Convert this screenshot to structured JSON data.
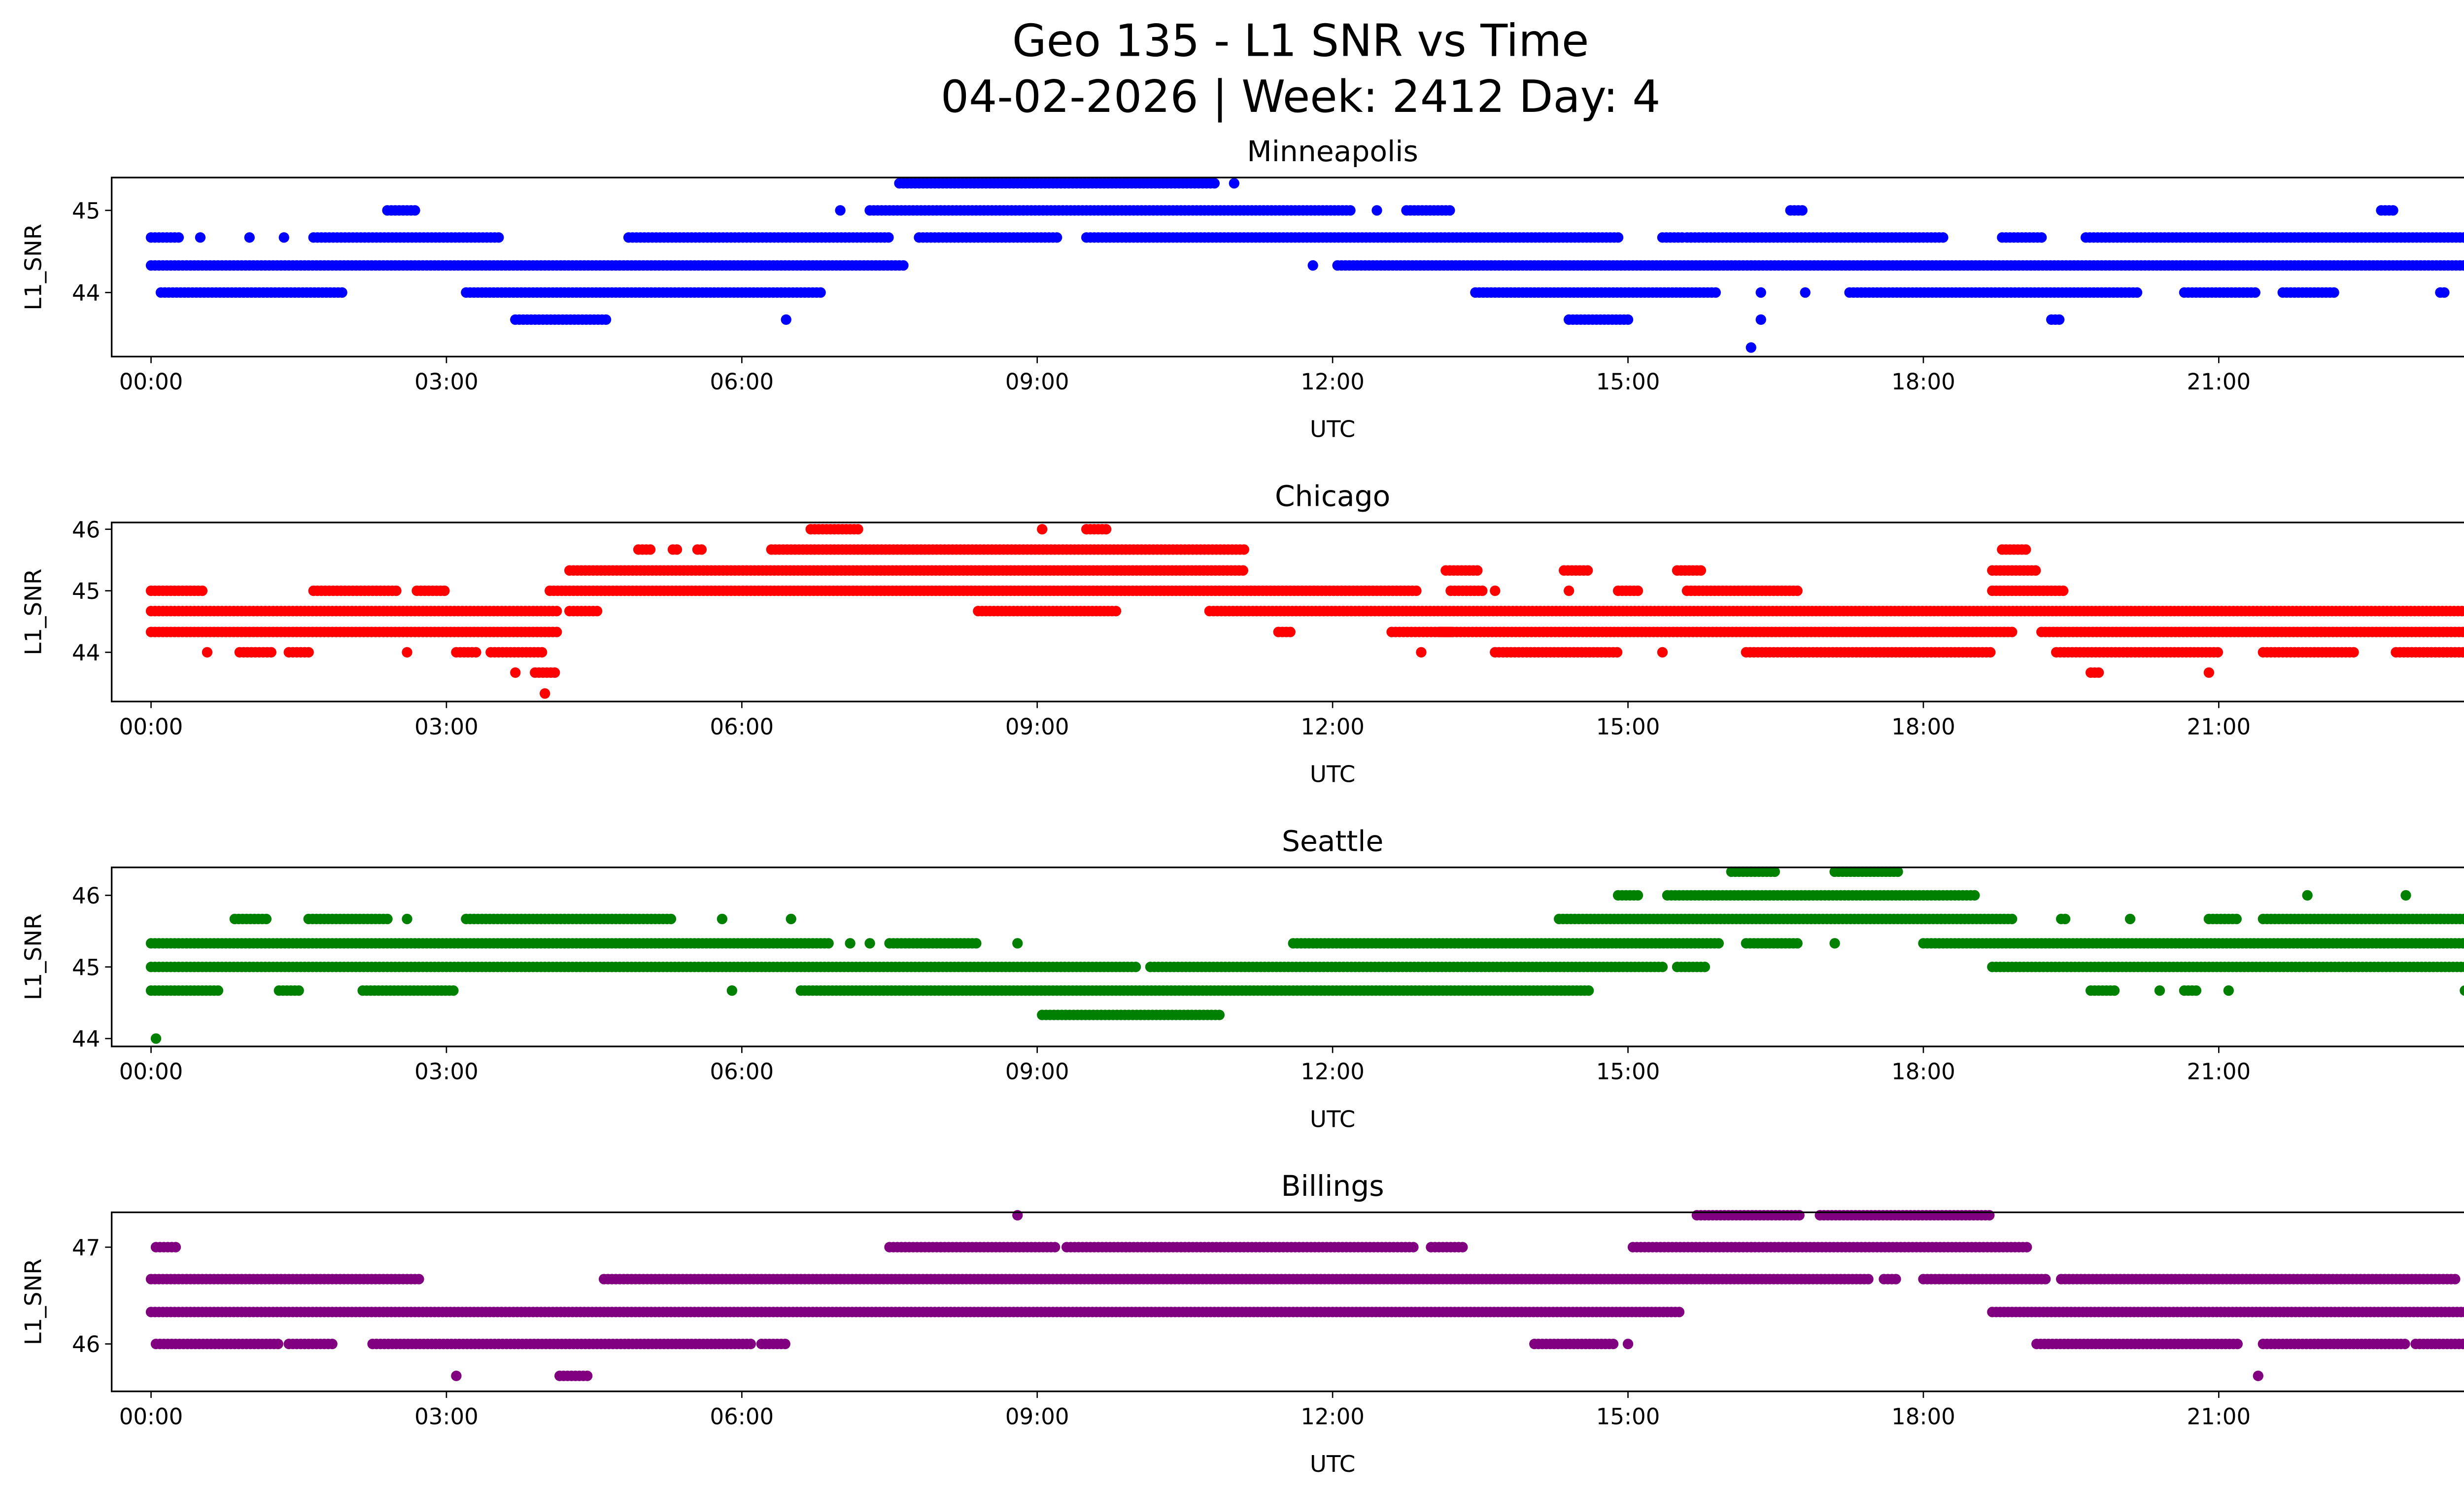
{
  "title_line1": "Geo 135 - L1 SNR vs Time",
  "title_line2": "04-02-2026 | Week: 2412 Day: 4",
  "chart_data": [
    {
      "type": "scatter",
      "title": "Minneapolis",
      "xlabel": "UTC",
      "ylabel": "L1_SNR",
      "color": "#0000ff",
      "xlim_hours": [
        -0.4,
        24.4
      ],
      "ylim": [
        43.22,
        45.4
      ],
      "yticks": [
        44,
        45
      ],
      "xticks": [
        "00:00",
        "03:00",
        "06:00",
        "09:00",
        "12:00",
        "15:00",
        "18:00",
        "21:00",
        "00:00"
      ],
      "series": [
        {
          "level": 45.33,
          "segments": [
            [
              7.6,
              10.8
            ],
            [
              11.0,
              11.0
            ]
          ]
        },
        {
          "level": 45.0,
          "segments": [
            [
              2.4,
              2.7
            ],
            [
              7.0,
              7.0
            ],
            [
              7.3,
              12.2
            ],
            [
              12.45,
              12.45
            ],
            [
              12.75,
              13.2
            ],
            [
              16.65,
              16.8
            ],
            [
              22.65,
              22.8
            ]
          ]
        },
        {
          "level": 44.67,
          "segments": [
            [
              0,
              0.3
            ],
            [
              0.5,
              0.5
            ],
            [
              1.0,
              1.0
            ],
            [
              1.35,
              1.35
            ],
            [
              1.65,
              3.55
            ],
            [
              4.85,
              7.5
            ],
            [
              7.8,
              9.2
            ],
            [
              9.5,
              14.9
            ],
            [
              15.35,
              15.55
            ],
            [
              15.6,
              18.2
            ],
            [
              18.8,
              19.2
            ],
            [
              19.65,
              24
            ]
          ]
        },
        {
          "level": 44.33,
          "segments": [
            [
              0,
              7.65
            ],
            [
              11.8,
              11.8
            ],
            [
              12.05,
              24
            ]
          ]
        },
        {
          "level": 44.0,
          "segments": [
            [
              0.1,
              1.95
            ],
            [
              3.2,
              6.8
            ],
            [
              13.45,
              15.9
            ],
            [
              16.35,
              16.35
            ],
            [
              16.8,
              16.8
            ],
            [
              17.25,
              20.2
            ],
            [
              20.65,
              21.4
            ],
            [
              21.65,
              22.2
            ],
            [
              23.25,
              23.3
            ],
            [
              23.8,
              23.85
            ]
          ]
        },
        {
          "level": 43.67,
          "segments": [
            [
              3.7,
              4.65
            ],
            [
              6.45,
              6.45
            ],
            [
              14.4,
              15.0
            ],
            [
              16.35,
              16.35
            ],
            [
              19.3,
              19.4
            ]
          ]
        },
        {
          "level": 43.33,
          "segments": [
            [
              16.25,
              16.25
            ]
          ]
        }
      ]
    },
    {
      "type": "scatter",
      "title": "Chicago",
      "xlabel": "UTC",
      "ylabel": "L1_SNR",
      "color": "#ff0000",
      "xlim_hours": [
        -0.4,
        24.4
      ],
      "ylim": [
        43.2,
        46.11
      ],
      "yticks": [
        44,
        45,
        46
      ],
      "xticks": [
        "00:00",
        "03:00",
        "06:00",
        "09:00",
        "12:00",
        "15:00",
        "18:00",
        "21:00",
        "00:00"
      ],
      "series": [
        {
          "level": 46.0,
          "segments": [
            [
              6.7,
              7.2
            ],
            [
              9.05,
              9.05
            ],
            [
              9.5,
              9.7
            ]
          ]
        },
        {
          "level": 45.67,
          "segments": [
            [
              4.95,
              5.1
            ],
            [
              5.3,
              5.35
            ],
            [
              5.55,
              5.6
            ],
            [
              6.3,
              11.1
            ],
            [
              18.8,
              19.05
            ]
          ]
        },
        {
          "level": 45.33,
          "segments": [
            [
              4.25,
              11.1
            ],
            [
              13.15,
              13.5
            ],
            [
              14.35,
              14.6
            ],
            [
              15.5,
              15.75
            ],
            [
              18.7,
              19.15
            ]
          ]
        },
        {
          "level": 45.0,
          "segments": [
            [
              0,
              0.55
            ],
            [
              1.65,
              2.5
            ],
            [
              2.7,
              3.0
            ],
            [
              4.05,
              12.85
            ],
            [
              13.2,
              13.55
            ],
            [
              13.65,
              13.65
            ],
            [
              14.4,
              14.4
            ],
            [
              14.9,
              15.1
            ],
            [
              15.6,
              16.75
            ],
            [
              18.7,
              19.45
            ],
            [
              23.95,
              24
            ]
          ]
        },
        {
          "level": 44.67,
          "segments": [
            [
              0,
              4.15
            ],
            [
              4.25,
              4.55
            ],
            [
              8.4,
              9.8
            ],
            [
              10.75,
              24
            ]
          ]
        },
        {
          "level": 44.33,
          "segments": [
            [
              0,
              4.15
            ],
            [
              11.45,
              11.6
            ],
            [
              12.6,
              13.2
            ],
            [
              13.1,
              18.9
            ],
            [
              19.2,
              24
            ]
          ]
        },
        {
          "level": 44.0,
          "segments": [
            [
              0.57,
              0.57
            ],
            [
              0.9,
              1.25
            ],
            [
              1.4,
              1.6
            ],
            [
              2.6,
              2.6
            ],
            [
              3.1,
              3.3
            ],
            [
              3.45,
              4.0
            ],
            [
              12.9,
              12.9
            ],
            [
              13.65,
              14.9
            ],
            [
              15.35,
              15.35
            ],
            [
              16.2,
              18.7
            ],
            [
              19.35,
              21.0
            ],
            [
              21.45,
              22.4
            ],
            [
              22.8,
              24
            ]
          ]
        },
        {
          "level": 43.67,
          "segments": [
            [
              3.7,
              3.7
            ],
            [
              3.9,
              4.1
            ],
            [
              19.7,
              19.8
            ],
            [
              20.9,
              20.9
            ]
          ]
        },
        {
          "level": 43.33,
          "segments": [
            [
              4.0,
              4.0
            ]
          ]
        }
      ]
    },
    {
      "type": "scatter",
      "title": "Seattle",
      "xlabel": "UTC",
      "ylabel": "L1_SNR",
      "color": "#008000",
      "xlim_hours": [
        -0.4,
        24.4
      ],
      "ylim": [
        43.89,
        46.39
      ],
      "yticks": [
        44,
        45,
        46
      ],
      "xticks": [
        "00:00",
        "03:00",
        "06:00",
        "09:00",
        "12:00",
        "15:00",
        "18:00",
        "21:00",
        "00:00"
      ],
      "series": [
        {
          "level": 46.33,
          "segments": [
            [
              16.05,
              16.5
            ],
            [
              17.1,
              17.75
            ]
          ]
        },
        {
          "level": 46.0,
          "segments": [
            [
              14.9,
              15.1
            ],
            [
              15.4,
              18.55
            ],
            [
              21.9,
              21.9
            ],
            [
              22.9,
              22.9
            ]
          ]
        },
        {
          "level": 45.67,
          "segments": [
            [
              0.85,
              1.2
            ],
            [
              1.6,
              2.4
            ],
            [
              2.6,
              2.6
            ],
            [
              3.2,
              5.3
            ],
            [
              5.8,
              5.8
            ],
            [
              6.5,
              6.5
            ],
            [
              14.3,
              18.9
            ],
            [
              19.4,
              19.45
            ],
            [
              20.1,
              20.1
            ],
            [
              20.9,
              21.2
            ],
            [
              21.45,
              23.5
            ],
            [
              23.85,
              23.85
            ]
          ]
        },
        {
          "level": 45.33,
          "segments": [
            [
              0,
              6.9
            ],
            [
              7.1,
              7.1
            ],
            [
              7.3,
              7.3
            ],
            [
              7.5,
              8.4
            ],
            [
              8.8,
              8.8
            ],
            [
              11.6,
              15.95
            ],
            [
              16.2,
              16.75
            ],
            [
              17.1,
              17.1
            ],
            [
              18.0,
              24
            ]
          ]
        },
        {
          "level": 45.0,
          "segments": [
            [
              0,
              10.0
            ],
            [
              10.15,
              15.35
            ],
            [
              15.5,
              15.8
            ],
            [
              18.7,
              24
            ]
          ]
        },
        {
          "level": 44.67,
          "segments": [
            [
              0,
              0.7
            ],
            [
              1.3,
              1.5
            ],
            [
              2.15,
              3.1
            ],
            [
              5.9,
              5.9
            ],
            [
              6.6,
              14.6
            ],
            [
              19.7,
              19.95
            ],
            [
              20.4,
              20.4
            ],
            [
              20.65,
              20.8
            ],
            [
              21.1,
              21.1
            ],
            [
              23.5,
              23.5
            ],
            [
              23.95,
              23.95
            ]
          ]
        },
        {
          "level": 44.33,
          "segments": [
            [
              9.05,
              10.85
            ]
          ]
        },
        {
          "level": 44.0,
          "segments": [
            [
              0.05,
              0.05
            ]
          ]
        }
      ]
    },
    {
      "type": "scatter",
      "title": "Billings",
      "xlabel": "UTC",
      "ylabel": "L1_SNR",
      "color": "#800080",
      "xlim_hours": [
        -0.4,
        24.4
      ],
      "ylim": [
        45.51,
        47.36
      ],
      "yticks": [
        46,
        47
      ],
      "xticks": [
        "00:00",
        "03:00",
        "06:00",
        "09:00",
        "12:00",
        "15:00",
        "18:00",
        "21:00",
        "00:00"
      ],
      "series": [
        {
          "level": 47.33,
          "segments": [
            [
              8.8,
              8.8
            ],
            [
              15.7,
              16.75
            ],
            [
              16.95,
              18.7
            ]
          ]
        },
        {
          "level": 47.0,
          "segments": [
            [
              0.05,
              0.25
            ],
            [
              7.5,
              9.2
            ],
            [
              9.3,
              12.85
            ],
            [
              13.0,
              13.35
            ],
            [
              15.05,
              19.05
            ]
          ]
        },
        {
          "level": 46.67,
          "segments": [
            [
              0,
              2.75
            ],
            [
              4.6,
              17.45
            ],
            [
              17.6,
              17.75
            ],
            [
              18.0,
              19.25
            ],
            [
              19.4,
              23.4
            ]
          ]
        },
        {
          "level": 46.33,
          "segments": [
            [
              0,
              15.55
            ],
            [
              18.7,
              24
            ]
          ]
        },
        {
          "level": 46.0,
          "segments": [
            [
              0.05,
              1.3
            ],
            [
              1.4,
              1.85
            ],
            [
              2.25,
              6.1
            ],
            [
              6.2,
              6.45
            ],
            [
              14.05,
              14.85
            ],
            [
              15.0,
              15.0
            ],
            [
              19.15,
              21.2
            ],
            [
              21.45,
              22.9
            ],
            [
              23.0,
              24
            ]
          ]
        },
        {
          "level": 45.67,
          "segments": [
            [
              3.1,
              3.1
            ],
            [
              4.15,
              4.45
            ],
            [
              21.4,
              21.4
            ]
          ]
        }
      ]
    }
  ]
}
